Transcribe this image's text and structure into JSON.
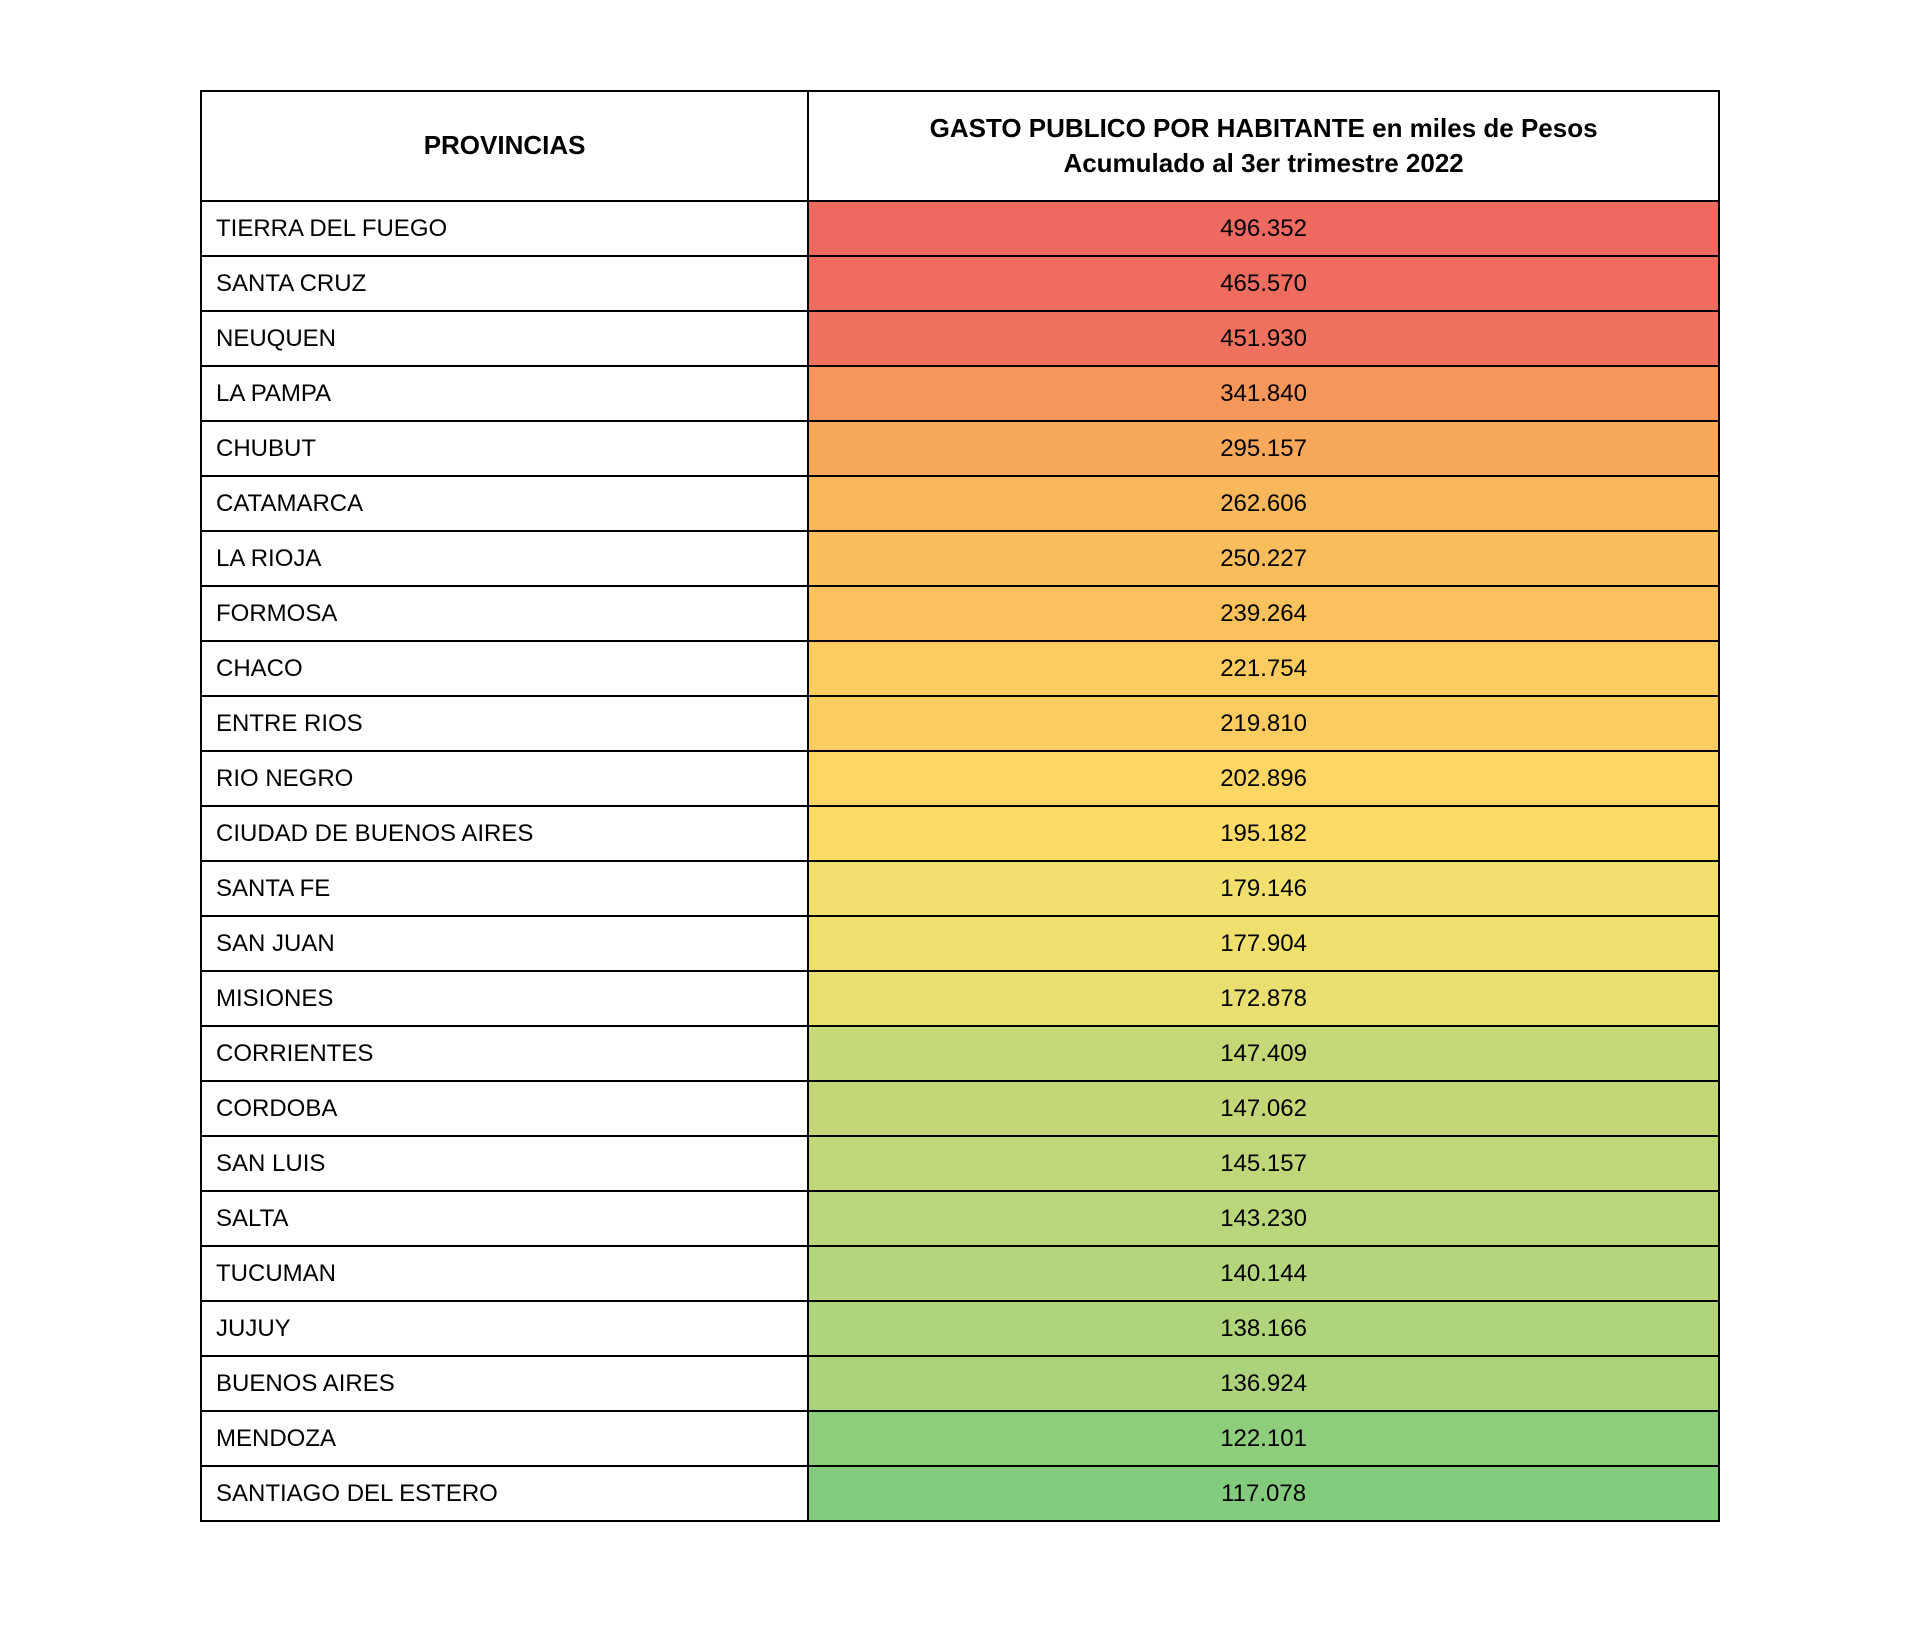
{
  "table": {
    "headers": {
      "provincia": "PROVINCIAS",
      "valor_line1": "GASTO PUBLICO POR HABITANTE en miles de Pesos",
      "valor_line2": "Acumulado al 3er trimestre 2022"
    },
    "rows": [
      {
        "provincia": "TIERRA DEL FUEGO",
        "valor": "496.352",
        "color": "#ee6960"
      },
      {
        "provincia": "SANTA CRUZ",
        "valor": "465.570",
        "color": "#ef6c5f"
      },
      {
        "provincia": "NEUQUEN",
        "valor": "451.930",
        "color": "#f0715e"
      },
      {
        "provincia": "LA PAMPA",
        "valor": "341.840",
        "color": "#f5965b"
      },
      {
        "provincia": "CHUBUT",
        "valor": "295.157",
        "color": "#f7a85b"
      },
      {
        "provincia": "CATAMARCA",
        "valor": "262.606",
        "color": "#f9b75c"
      },
      {
        "provincia": "LA RIOJA",
        "valor": "250.227",
        "color": "#fabd5c"
      },
      {
        "provincia": "FORMOSA",
        "valor": "239.264",
        "color": "#fbc15d"
      },
      {
        "provincia": "CHACO",
        "valor": "221.754",
        "color": "#fdcb5f"
      },
      {
        "provincia": "ENTRE RIOS",
        "valor": "219.810",
        "color": "#fdcc60"
      },
      {
        "provincia": "RIO NEGRO",
        "valor": "202.896",
        "color": "#fed664"
      },
      {
        "provincia": "CIUDAD DE BUENOS AIRES",
        "valor": "195.182",
        "color": "#fedb65"
      },
      {
        "provincia": "SANTA FE",
        "valor": "179.146",
        "color": "#f1e06d"
      },
      {
        "provincia": "SAN JUAN",
        "valor": "177.904",
        "color": "#efe06e"
      },
      {
        "provincia": "MISIONES",
        "valor": "172.878",
        "color": "#e9df70"
      },
      {
        "provincia": "CORRIENTES",
        "valor": "147.409",
        "color": "#c4d878"
      },
      {
        "provincia": "CORDOBA",
        "valor": "147.062",
        "color": "#c3d778"
      },
      {
        "provincia": "SAN LUIS",
        "valor": "145.157",
        "color": "#c0d779"
      },
      {
        "provincia": "SALTA",
        "valor": "143.230",
        "color": "#bad67a"
      },
      {
        "provincia": "TUCUMAN",
        "valor": "140.144",
        "color": "#b3d57b"
      },
      {
        "provincia": "JUJUY",
        "valor": "138.166",
        "color": "#afd47b"
      },
      {
        "provincia": "BUENOS AIRES",
        "valor": "136.924",
        "color": "#acd37b"
      },
      {
        "provincia": "MENDOZA",
        "valor": "122.101",
        "color": "#8ecd7c"
      },
      {
        "provincia": "SANTIAGO DEL ESTERO",
        "valor": "117.078",
        "color": "#83cb7c"
      }
    ]
  }
}
